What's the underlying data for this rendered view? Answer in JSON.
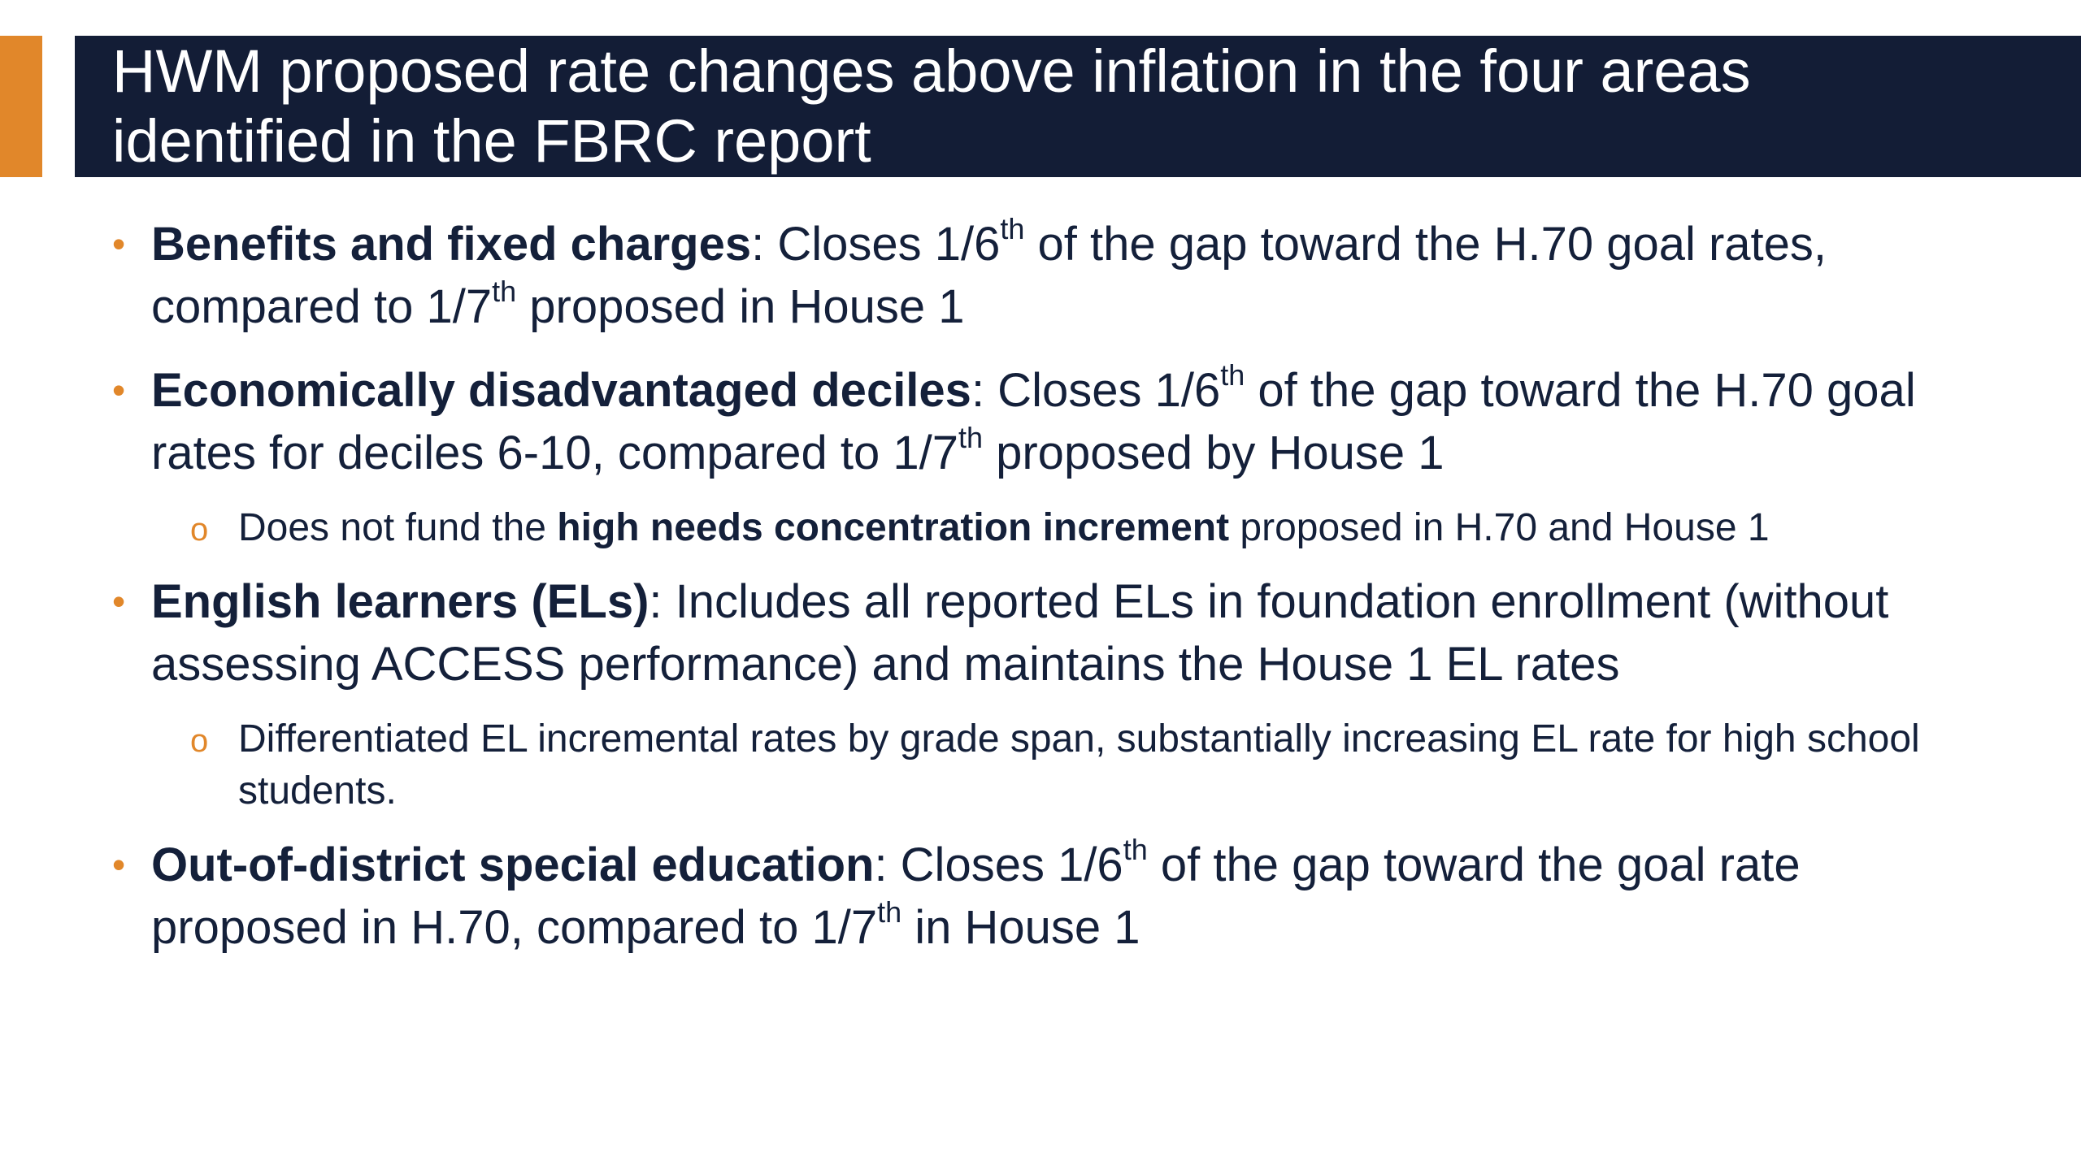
{
  "slide": {
    "title_line1": "HWM proposed rate changes above inflation in the four areas",
    "title_line2": "identified in the FBRC report",
    "bullet_glyph": "•",
    "sub_bullet_glyph": "o",
    "colors": {
      "title_background": "#131d36",
      "accent": "#e1872a",
      "body_text": "#14203a",
      "title_text": "#ffffff"
    }
  },
  "bullets": [
    {
      "head": "Benefits and fixed charges",
      "t1": ": Closes 1/6",
      "s1": "th",
      "t2": " of the gap toward the H.70 goal rates, compared to 1/7",
      "s2": "th",
      "t3": " proposed in House 1"
    },
    {
      "head": "Economically disadvantaged deciles",
      "t1": ": Closes 1/6",
      "s1": "th",
      "t2": " of the gap toward the H.70 goal rates for deciles 6-10, compared to 1/7",
      "s2": "th",
      "t3": " proposed by House 1",
      "sub": {
        "pre": "Does not fund the ",
        "bold": "high needs concentration increment",
        "post": " proposed in H.70 and House 1"
      }
    },
    {
      "head": "English learners (ELs)",
      "t1": ": Includes all reported ELs in foundation enrollment (without assessing ACCESS performance) and maintains the House 1 EL rates",
      "sub": {
        "text": "Differentiated EL incremental rates by grade span, substantially increasing EL rate for high school students."
      }
    },
    {
      "head": "Out-of-district special education",
      "t1": ": Closes 1/6",
      "s1": "th",
      "t2": " of the gap toward the goal rate proposed in H.70, compared to 1/7",
      "s2": "th",
      "t3": " in House 1"
    }
  ]
}
